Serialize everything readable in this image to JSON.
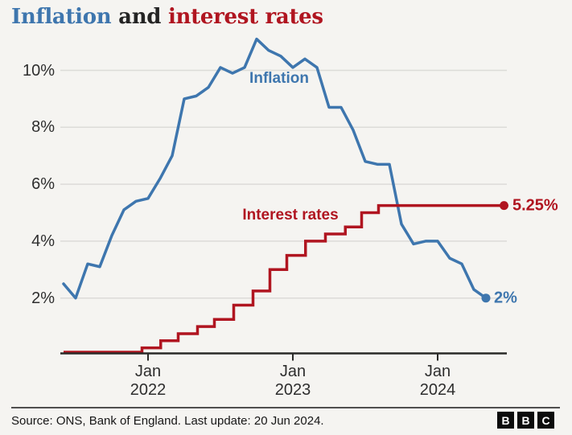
{
  "title": {
    "inflation": "Inflation",
    "connector": " and ",
    "interest_rates": "interest rates"
  },
  "colors": {
    "blue": "#3e76ae",
    "red": "#b01520",
    "background": "#f5f4f1",
    "grid": "#dcdbd8",
    "axis": "#2a2a28",
    "tick_text": "#2e2e2e"
  },
  "chart_data": {
    "type": "line",
    "title": "Inflation and interest rates",
    "grid": "horizontal-on",
    "legend_position": "inline-labels",
    "ylim": [
      0,
      11.5
    ],
    "y_unit": "%",
    "y_ticks": [
      {
        "label": "10%",
        "value": 10
      },
      {
        "label": "8%",
        "value": 8
      },
      {
        "label": "6%",
        "value": 6
      },
      {
        "label": "4%",
        "value": 4
      },
      {
        "label": "2%",
        "value": 2
      }
    ],
    "x_ticks": [
      {
        "month": "Jan",
        "year": "2022",
        "m": 7
      },
      {
        "month": "Jan",
        "year": "2023",
        "m": 19
      },
      {
        "month": "Jan",
        "year": "2024",
        "m": 31
      }
    ],
    "series": [
      {
        "name": "inflation",
        "label": "Inflation",
        "end_label": "2%",
        "color": "#3e76ae",
        "months": [
          "Jun 2021",
          "Jul 2021",
          "Aug 2021",
          "Sep 2021",
          "Oct 2021",
          "Nov 2021",
          "Dec 2021",
          "Jan 2022",
          "Feb 2022",
          "Mar 2022",
          "Apr 2022",
          "May 2022",
          "Jun 2022",
          "Jul 2022",
          "Aug 2022",
          "Sep 2022",
          "Oct 2022",
          "Nov 2022",
          "Dec 2022",
          "Jan 2023",
          "Feb 2023",
          "Mar 2023",
          "Apr 2023",
          "May 2023",
          "Jun 2023",
          "Jul 2023",
          "Aug 2023",
          "Sep 2023",
          "Oct 2023",
          "Nov 2023",
          "Dec 2023",
          "Jan 2024",
          "Feb 2024",
          "Mar 2024",
          "Apr 2024",
          "May 2024"
        ],
        "values": [
          2.5,
          2.0,
          3.2,
          3.1,
          4.2,
          5.1,
          5.4,
          5.5,
          6.2,
          7.0,
          9.0,
          9.1,
          9.4,
          10.1,
          9.9,
          10.1,
          11.1,
          10.7,
          10.5,
          10.1,
          10.4,
          10.1,
          8.7,
          8.7,
          7.9,
          6.8,
          6.7,
          6.7,
          4.6,
          3.9,
          4.0,
          4.0,
          3.4,
          3.2,
          2.3,
          2.0
        ]
      },
      {
        "name": "interest-rates",
        "label": "Interest rates",
        "end_label": "5.25%",
        "color": "#b01520",
        "style": "step",
        "end_m": 36.5,
        "steps": [
          {
            "date": "Jun 2021",
            "rate": 0.1,
            "m": 0
          },
          {
            "date": "16 Dec 2021",
            "rate": 0.25,
            "m": 6.5
          },
          {
            "date": "3 Feb 2022",
            "rate": 0.5,
            "m": 8.05
          },
          {
            "date": "17 Mar 2022",
            "rate": 0.75,
            "m": 9.5
          },
          {
            "date": "5 May 2022",
            "rate": 1.0,
            "m": 11.1
          },
          {
            "date": "16 Jun 2022",
            "rate": 1.25,
            "m": 12.5
          },
          {
            "date": "4 Aug 2022",
            "rate": 1.75,
            "m": 14.1
          },
          {
            "date": "22 Sep 2022",
            "rate": 2.25,
            "m": 15.7
          },
          {
            "date": "3 Nov 2022",
            "rate": 3.0,
            "m": 17.1
          },
          {
            "date": "15 Dec 2022",
            "rate": 3.5,
            "m": 18.5
          },
          {
            "date": "2 Feb 2023",
            "rate": 4.0,
            "m": 20.05
          },
          {
            "date": "23 Mar 2023",
            "rate": 4.25,
            "m": 21.7
          },
          {
            "date": "11 May 2023",
            "rate": 4.5,
            "m": 23.35
          },
          {
            "date": "22 Jun 2023",
            "rate": 5.0,
            "m": 24.7
          },
          {
            "date": "3 Aug 2023",
            "rate": 5.25,
            "m": 26.1
          }
        ]
      }
    ]
  },
  "footer": {
    "source": "Source: ONS, Bank of England. Last update: 20 Jun 2024.",
    "logo_letters": [
      "B",
      "B",
      "C"
    ]
  }
}
